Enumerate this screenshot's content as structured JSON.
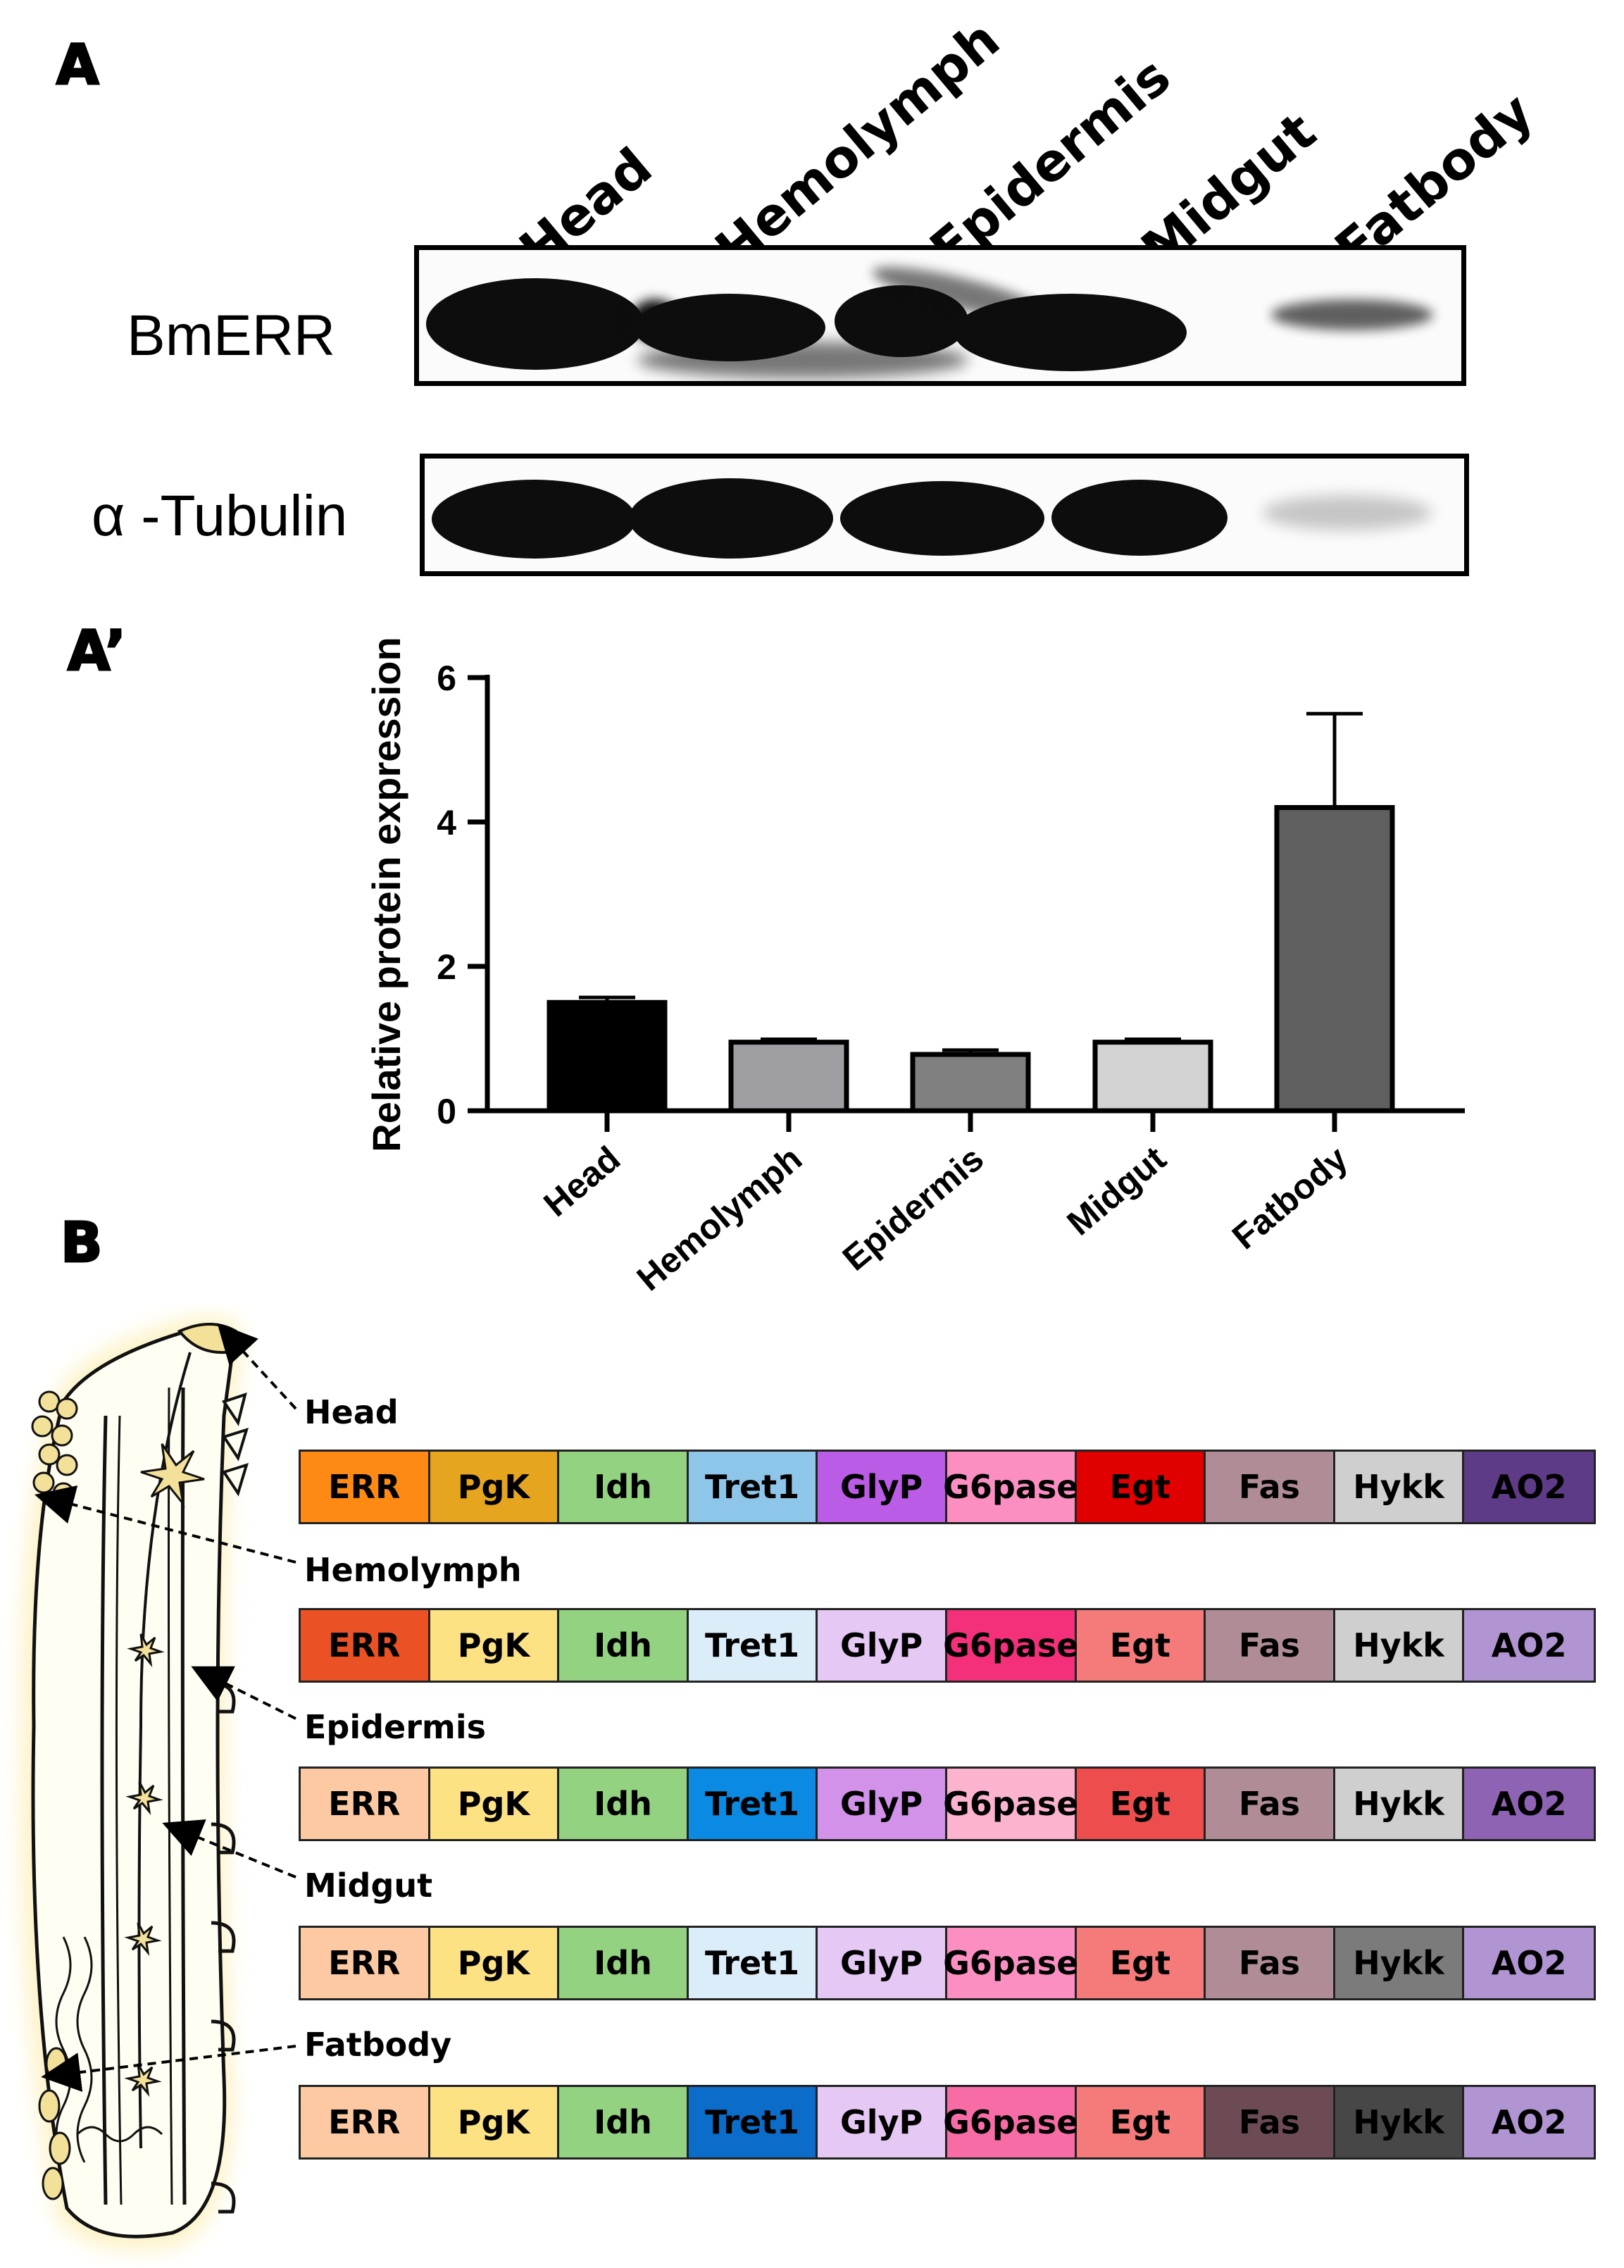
{
  "panels": {
    "a": "A",
    "a_prime": "A’",
    "b": "B"
  },
  "western_blot": {
    "lanes": [
      "Head",
      "Hemolymph",
      "Epidermis",
      "Midgut",
      "Fatbody"
    ],
    "rows": [
      {
        "label": "BmERR",
        "band_intensity": [
          1.0,
          0.85,
          0.9,
          0.85,
          0.3
        ]
      },
      {
        "label": "α -Tubulin",
        "band_intensity": [
          1.0,
          1.0,
          1.0,
          1.0,
          0.15
        ]
      }
    ]
  },
  "chart_data": {
    "type": "bar",
    "categories": [
      "Head",
      "Hemolymph",
      "Epidermis",
      "Midgut",
      "Fatbody"
    ],
    "values": [
      1.5,
      0.95,
      0.78,
      0.95,
      4.2
    ],
    "errors": [
      0.07,
      0.04,
      0.06,
      0.04,
      1.3
    ],
    "bar_colors": [
      "#000000",
      "#9e9ea3",
      "#808080",
      "#d2d2d2",
      "#5f5f5f"
    ],
    "ylabel": "Relative protein expression",
    "yticks": [
      0,
      2,
      4,
      6
    ],
    "ylim": [
      0,
      6
    ],
    "title": "",
    "xlabel": ""
  },
  "heatmap": {
    "genes": [
      "ERR",
      "PgK",
      "Idh",
      "Tret1",
      "GlyP",
      "G6pase",
      "Egt",
      "Fas",
      "Hykk",
      "AO2"
    ],
    "tissues": [
      {
        "name": "Head",
        "colors": [
          "#ff8a13",
          "#e6a51e",
          "#92d280",
          "#8ec6ea",
          "#bb5ce6",
          "#fb8fc1",
          "#e00000",
          "#b08d96",
          "#cfcfcf",
          "#5e3b87"
        ]
      },
      {
        "name": "Hemolymph",
        "colors": [
          "#ea5125",
          "#fde284",
          "#92d280",
          "#dcedfa",
          "#e5c8f4",
          "#f5307a",
          "#f57a7a",
          "#b08d96",
          "#cfcfcf",
          "#b095d2"
        ]
      },
      {
        "name": "Epidermis",
        "colors": [
          "#fcc9a2",
          "#fde284",
          "#92d280",
          "#0a8ae2",
          "#d392ea",
          "#fbb3d0",
          "#ee4d4d",
          "#b08d96",
          "#cfcfcf",
          "#8e63b4"
        ]
      },
      {
        "name": "Midgut",
        "colors": [
          "#fcc9a2",
          "#fde284",
          "#92d280",
          "#dcedfa",
          "#e5c8f4",
          "#fb8fc1",
          "#f57a7a",
          "#b08d96",
          "#7b7b7b",
          "#b095d2"
        ]
      },
      {
        "name": "Fatbody",
        "colors": [
          "#fcc9a2",
          "#fde284",
          "#92d280",
          "#0b6cc9",
          "#e5c8f4",
          "#f86ca6",
          "#f57a7a",
          "#6c4b55",
          "#474747",
          "#b095d2"
        ]
      }
    ]
  }
}
